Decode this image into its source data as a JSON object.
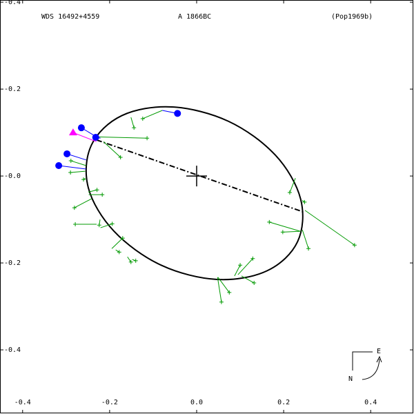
{
  "chart_data": {
    "type": "scatter",
    "title": "WDS 16492+4559",
    "subtitle": "A  1866BC",
    "reference": "(Pop1969b)",
    "compass": {
      "east": "E",
      "north": "N"
    },
    "xlim": [
      -0.452,
      0.498
    ],
    "ylim": [
      -0.546,
      0.405
    ],
    "xticks": [
      -0.4,
      -0.2,
      {
        "value": 0,
        "label": "0.0"
      },
      0.2,
      0.4
    ],
    "yticks": [
      {
        "value": 0.4,
        "label": "-0.4"
      },
      {
        "value": 0.2,
        "label": "-0.2"
      },
      {
        "value": 0,
        "label": "-0.0"
      },
      -0.2,
      -0.4
    ],
    "primary": {
      "x": 0,
      "y": 0
    },
    "orbit": {
      "color": "#000000",
      "x": [
        0.232,
        0.162,
        0.047,
        -0.082,
        -0.19,
        -0.249,
        -0.242,
        -0.172,
        -0.057,
        0.073,
        0.181,
        0.239
      ],
      "y": [
        -0.151,
        -0.218,
        -0.238,
        -0.205,
        -0.127,
        -0.027,
        0.071,
        0.139,
        0.159,
        0.126,
        0.048,
        -0.053
      ]
    },
    "line_of_nodes": {
      "color": "#000000",
      "x": [
        -0.23,
        0.249
      ],
      "y": [
        0.083,
        -0.084
      ]
    },
    "series": [
      {
        "marker": "plus",
        "color": "#009900",
        "x": [
          -0.114,
          -0.175,
          -0.144,
          -0.124,
          -0.289,
          -0.29,
          -0.26,
          -0.229,
          -0.217,
          -0.281,
          -0.279,
          -0.224,
          -0.194,
          -0.17,
          -0.178,
          -0.151,
          -0.14,
          0.057,
          0.075,
          0.1,
          0.129,
          0.132,
          0.167,
          0.198,
          0.257,
          0.214,
          0.248,
          0.363
        ],
        "y": [
          0.087,
          0.043,
          0.111,
          0.132,
          0.035,
          0.008,
          -0.008,
          -0.032,
          -0.043,
          -0.073,
          -0.111,
          -0.113,
          -0.11,
          -0.143,
          -0.175,
          -0.198,
          -0.195,
          -0.29,
          -0.268,
          -0.205,
          -0.19,
          -0.246,
          -0.106,
          -0.129,
          -0.167,
          -0.038,
          -0.06,
          -0.159
        ],
        "fit_x": [
          -0.23,
          -0.214,
          -0.151,
          -0.079,
          -0.254,
          -0.256,
          -0.256,
          -0.249,
          -0.248,
          -0.241,
          -0.23,
          -0.222,
          -0.221,
          -0.195,
          -0.186,
          -0.159,
          -0.148,
          0.048,
          0.049,
          0.087,
          0.095,
          0.103,
          0.238,
          0.24,
          0.243,
          0.227,
          0.243,
          0.249
        ],
        "fit_y": [
          0.09,
          0.079,
          0.135,
          0.151,
          0.024,
          0.011,
          -0.005,
          -0.037,
          -0.043,
          -0.052,
          -0.111,
          -0.1,
          -0.119,
          -0.167,
          -0.17,
          -0.186,
          -0.192,
          -0.233,
          -0.233,
          -0.23,
          -0.227,
          -0.23,
          -0.127,
          -0.127,
          -0.124,
          -0.005,
          -0.056,
          -0.079
        ]
      },
      {
        "marker": "circle",
        "color": "#0000ff",
        "x": [
          -0.044,
          -0.265,
          -0.232,
          -0.298,
          -0.317
        ],
        "y": [
          0.144,
          0.111,
          0.089,
          0.051,
          0.024
        ],
        "fit_x": [
          -0.079,
          -0.23,
          -0.221,
          -0.254,
          -0.254
        ],
        "fit_y": [
          0.151,
          0.09,
          0.087,
          0.037,
          0.016
        ]
      },
      {
        "marker": "triangle",
        "color": "#ff00ff",
        "x": [
          -0.284
        ],
        "y": [
          0.1
        ],
        "fit_x": [
          -0.23
        ],
        "fit_y": [
          0.079
        ]
      }
    ]
  }
}
